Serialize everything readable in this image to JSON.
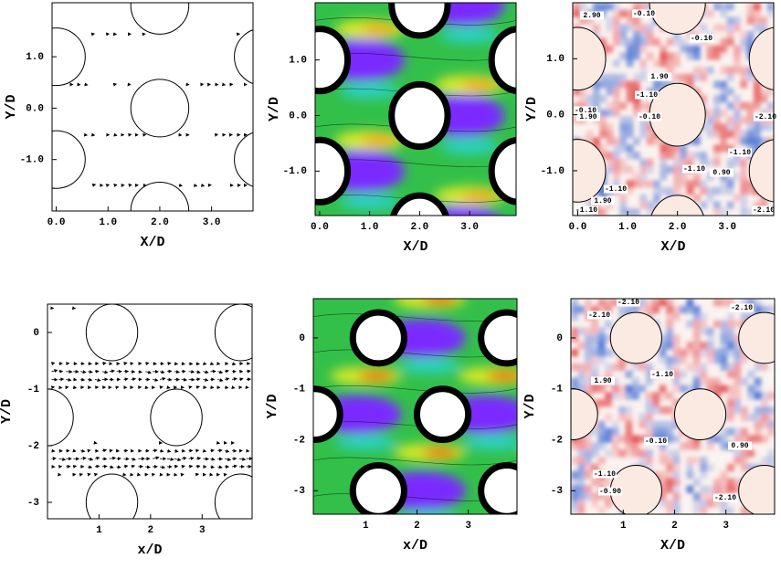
{
  "chart_data": [
    {
      "type": "vector",
      "xlabel": "X/D",
      "ylabel": "Y/D",
      "xlim": [
        -0.08,
        3.8
      ],
      "ylim": [
        -2.0,
        2.05
      ],
      "xticks": [
        {
          "value": 0,
          "label": "0.0"
        },
        {
          "value": 1,
          "label": "1.0"
        },
        {
          "value": 2,
          "label": "2.0"
        },
        {
          "value": 3,
          "label": "3.0"
        }
      ],
      "yticks": [
        {
          "value": -1,
          "label": "-1.0"
        },
        {
          "value": 0,
          "label": "0.0"
        },
        {
          "value": 1,
          "label": "1.0"
        }
      ]
    },
    {
      "type": "contour",
      "xlabel": "X/D",
      "ylabel": "Y/D",
      "xlim": [
        -0.09,
        3.93
      ],
      "ylim": [
        -1.8,
        2.03
      ],
      "xticks": [
        {
          "value": 0,
          "label": "0.0"
        },
        {
          "value": 1,
          "label": "1.0"
        },
        {
          "value": 2,
          "label": "2.0"
        },
        {
          "value": 3,
          "label": "3.0"
        }
      ],
      "yticks": [
        {
          "value": -1,
          "label": "-1.0"
        },
        {
          "value": 0,
          "label": "0.0"
        },
        {
          "value": 1,
          "label": "1.0"
        }
      ]
    },
    {
      "type": "contour-map",
      "xlabel": "X/D",
      "ylabel": "Y/D",
      "xlim": [
        -0.1,
        3.93
      ],
      "ylim": [
        -1.8,
        2.0
      ],
      "xticks": [
        {
          "value": 0,
          "label": "0.0"
        },
        {
          "value": 1,
          "label": "1.0"
        },
        {
          "value": 2,
          "label": "2.0"
        },
        {
          "value": 3,
          "label": "3.0"
        }
      ],
      "yticks": [
        {
          "value": -1,
          "label": "-1.0"
        },
        {
          "value": 0,
          "label": "0.0"
        },
        {
          "value": 1,
          "label": "1.0"
        }
      ],
      "contour_labels": [
        "2.90",
        "-0.10",
        "-0.10",
        "1.90",
        "-1.10",
        "-0.10",
        "1.90",
        "-0.10",
        "-2.10",
        "-1.10",
        "-1.10",
        "0.90",
        "-1.10",
        "1.90",
        "-1.10",
        "-2.10"
      ]
    },
    {
      "type": "vector",
      "xlabel": "x/D",
      "ylabel": "Y/D",
      "xlim": [
        0.0,
        3.97
      ],
      "ylim": [
        -3.29,
        0.5
      ],
      "xticks": [
        1,
        2,
        3
      ],
      "yticks": [
        -3,
        -2,
        -1,
        0
      ]
    },
    {
      "type": "contour",
      "xlabel": "x/D",
      "ylabel": "Y/D",
      "xlim": [
        -0.02,
        3.95
      ],
      "ylim": [
        -3.46,
        0.77
      ],
      "xticks": [
        1,
        2,
        3
      ],
      "yticks": [
        -3,
        -2,
        -1,
        0
      ]
    },
    {
      "type": "contour-map",
      "xlabel": "X/D",
      "ylabel": "Y/D",
      "xlim": [
        -0.02,
        3.95
      ],
      "ylim": [
        -3.46,
        0.77
      ],
      "xticks": [
        1,
        2,
        3
      ],
      "yticks": [
        -3,
        -2,
        -1,
        0
      ],
      "contour_labels": [
        "-2.10",
        "-2.10",
        "-2.10",
        "1.90",
        "-1.10",
        "-0.10",
        "0.90",
        "-1.10",
        "-0.90",
        "-2.10"
      ]
    }
  ]
}
